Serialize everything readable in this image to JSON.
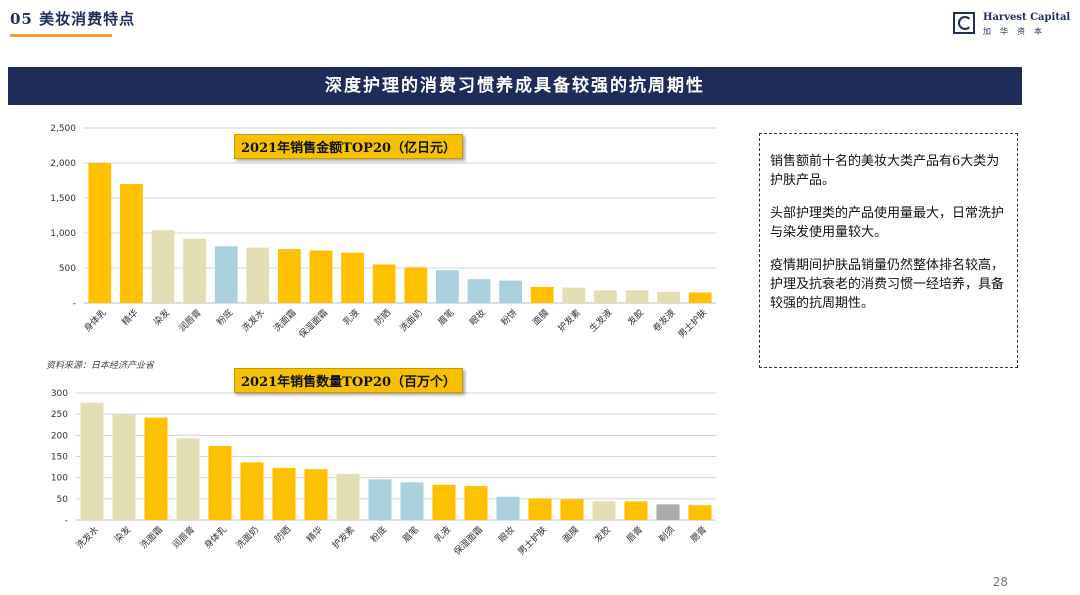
{
  "header": {
    "section_title": "05 美妆消费特点",
    "logo_en": "Harvest Capital",
    "logo_cn": "加华资本"
  },
  "banner": {
    "title": "深度护理的消费习惯养成具备较强的抗周期性"
  },
  "source": "资料来源：日本经济产业省",
  "notes": [
    "销售额前十名的美妆大类产品有6大类为护肤产品。",
    "头部护理类的产品使用量最大，日常洗护与染发使用量较大。",
    "疫情期间护肤品销量仍然整体排名较高，护理及抗衰老的消费习惯一经培养，具备较强的抗周期性。"
  ],
  "page_number": "28",
  "colors": {
    "yellow": "#ffc000",
    "beige": "#e3ddb4",
    "blue": "#a9d0dc",
    "gray": "#ababab",
    "navy": "#1e2b5b",
    "orange": "#f2a02c"
  },
  "chart_data": [
    {
      "type": "bar",
      "title": "2021年销售金额TOP20（亿日元）",
      "categories": [
        "身体乳",
        "精华",
        "染发",
        "润唇膏",
        "粉底",
        "洗发水",
        "洗面霜",
        "保湿面霜",
        "乳液",
        "防晒",
        "洗面奶",
        "眉笔",
        "眼妆",
        "粉饼",
        "面膜",
        "护发素",
        "生发液",
        "发胶",
        "卷发液",
        "男士护肤"
      ],
      "values": [
        2000,
        1700,
        1040,
        920,
        810,
        790,
        770,
        750,
        720,
        550,
        510,
        470,
        340,
        320,
        230,
        220,
        180,
        180,
        160,
        150
      ],
      "bar_colors": [
        "yellow",
        "yellow",
        "beige",
        "beige",
        "blue",
        "beige",
        "yellow",
        "yellow",
        "yellow",
        "yellow",
        "yellow",
        "blue",
        "blue",
        "blue",
        "yellow",
        "beige",
        "beige",
        "beige",
        "beige",
        "yellow"
      ],
      "ylim": [
        0,
        2500
      ],
      "yticks": [
        0,
        500,
        1000,
        1500,
        2000,
        2500
      ],
      "ytick_labels": [
        "-",
        "500",
        "1,000",
        "1,500",
        "2,000",
        "2,500"
      ],
      "grid": true
    },
    {
      "type": "bar",
      "title": "2021年销售数量TOP20（百万个）",
      "categories": [
        "洗发水",
        "染发",
        "洗面霜",
        "润唇膏",
        "身体乳",
        "洗面奶",
        "防晒",
        "精华",
        "护发素",
        "粉底",
        "眉笔",
        "乳液",
        "保湿面霜",
        "眼妆",
        "男士护肤",
        "面膜",
        "发胶",
        "唇膏",
        "剃须",
        "腮膏"
      ],
      "values": [
        277,
        250,
        242,
        193,
        175,
        136,
        123,
        120,
        109,
        96,
        89,
        83,
        80,
        55,
        51,
        49,
        44,
        44,
        37,
        35
      ],
      "bar_colors": [
        "beige",
        "beige",
        "yellow",
        "beige",
        "yellow",
        "yellow",
        "yellow",
        "yellow",
        "beige",
        "blue",
        "blue",
        "yellow",
        "yellow",
        "blue",
        "yellow",
        "yellow",
        "beige",
        "yellow",
        "gray",
        "yellow"
      ],
      "ylim": [
        0,
        300
      ],
      "yticks": [
        0,
        50,
        100,
        150,
        200,
        250,
        300
      ],
      "ytick_labels": [
        "-",
        "50",
        "100",
        "150",
        "200",
        "250",
        "300"
      ],
      "grid": true
    }
  ]
}
